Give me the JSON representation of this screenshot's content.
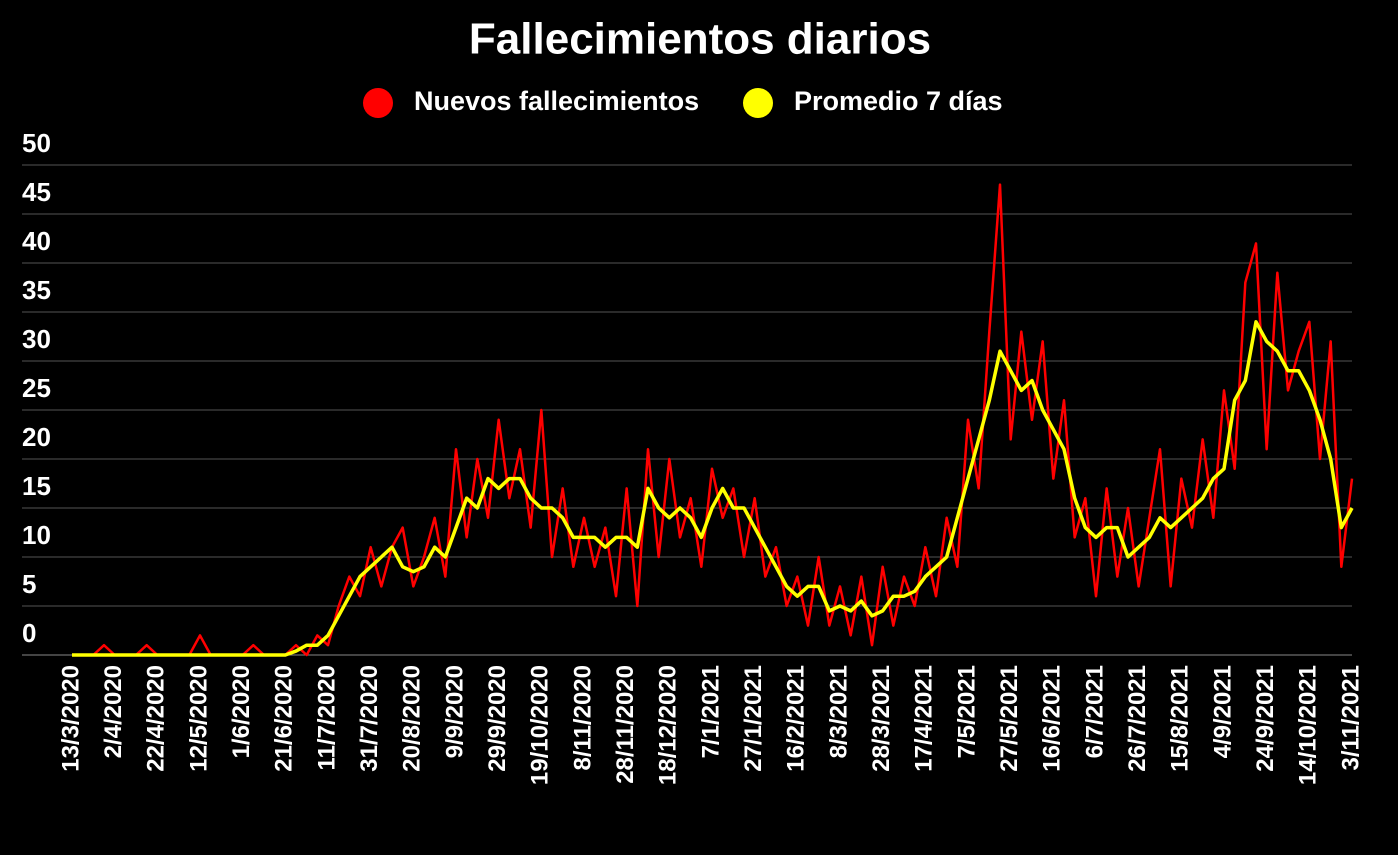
{
  "chart_data": {
    "type": "line",
    "title": "Fallecimientos diarios",
    "categories": [
      "13/3/2020",
      null,
      null,
      null,
      "2/4/2020",
      null,
      null,
      null,
      "22/4/2020",
      null,
      null,
      null,
      "12/5/2020",
      null,
      null,
      null,
      "1/6/2020",
      null,
      null,
      null,
      "21/6/2020",
      null,
      null,
      null,
      "11/7/2020",
      null,
      null,
      null,
      "31/7/2020",
      null,
      null,
      null,
      "20/8/2020",
      null,
      null,
      null,
      "9/9/2020",
      null,
      null,
      null,
      "29/9/2020",
      null,
      null,
      null,
      "19/10/2020",
      null,
      null,
      null,
      "8/11/2020",
      null,
      null,
      null,
      "28/11/2020",
      null,
      null,
      null,
      "18/12/2020",
      null,
      null,
      null,
      "7/1/2021",
      null,
      null,
      null,
      "27/1/2021",
      null,
      null,
      null,
      "16/2/2021",
      null,
      null,
      null,
      "8/3/2021",
      null,
      null,
      null,
      "28/3/2021",
      null,
      null,
      null,
      "17/4/2021",
      null,
      null,
      null,
      "7/5/2021",
      null,
      null,
      null,
      "27/5/2021",
      null,
      null,
      null,
      "16/6/2021",
      null,
      null,
      null,
      "6/7/2021",
      null,
      null,
      null,
      "26/7/2021",
      null,
      null,
      null,
      "15/8/2021",
      null,
      null,
      null,
      "4/9/2021",
      null,
      null,
      null,
      "24/9/2021",
      null,
      null,
      null,
      "14/10/2021",
      null,
      null,
      null,
      "3/11/2021"
    ],
    "series": [
      {
        "name": "Nuevos fallecimientos",
        "color": "#ff0000",
        "values": [
          0,
          0,
          0,
          1,
          0,
          0,
          0,
          1,
          0,
          0,
          0,
          0,
          2,
          0,
          0,
          0,
          0,
          1,
          0,
          0,
          0,
          1,
          0,
          2,
          1,
          5,
          8,
          6,
          11,
          7,
          11,
          13,
          7,
          10,
          14,
          8,
          21,
          12,
          20,
          14,
          24,
          16,
          21,
          13,
          25,
          10,
          17,
          9,
          14,
          9,
          13,
          6,
          17,
          5,
          21,
          10,
          20,
          12,
          16,
          9,
          19,
          14,
          17,
          10,
          16,
          8,
          11,
          5,
          8,
          3,
          10,
          3,
          7,
          2,
          8,
          1,
          9,
          3,
          8,
          5,
          11,
          6,
          14,
          9,
          24,
          17,
          33,
          48,
          22,
          33,
          24,
          32,
          18,
          26,
          12,
          16,
          6,
          17,
          8,
          15,
          7,
          14,
          21,
          7,
          18,
          13,
          22,
          14,
          27,
          19,
          38,
          42,
          21,
          39,
          27,
          31,
          34,
          20,
          32,
          9,
          18
        ]
      },
      {
        "name": "Promedio 7 días",
        "color": "#ffff00",
        "values": [
          0,
          0,
          0,
          0,
          0,
          0,
          0,
          0,
          0,
          0,
          0,
          0,
          0,
          0,
          0,
          0,
          0,
          0,
          0,
          0,
          0,
          0.4,
          1,
          1,
          2,
          4,
          6,
          8,
          9,
          10,
          11,
          9,
          8.5,
          9,
          11,
          10,
          13,
          16,
          15,
          18,
          17,
          18,
          18,
          16,
          15,
          15,
          14,
          12,
          12,
          12,
          11,
          12,
          12,
          11,
          17,
          15,
          14,
          15,
          14,
          12,
          15,
          17,
          15,
          15,
          13,
          11,
          9,
          7,
          6,
          7,
          7,
          4.5,
          5,
          4.5,
          5.5,
          4,
          4.5,
          6,
          6,
          6.5,
          8,
          9,
          10,
          14,
          18,
          22,
          26,
          31,
          29,
          27,
          28,
          25,
          23,
          21,
          16,
          13,
          12,
          13,
          13,
          10,
          11,
          12,
          14,
          13,
          14,
          15,
          16,
          18,
          19,
          26,
          28,
          34,
          32,
          31,
          29,
          29,
          27,
          24,
          20,
          13,
          15
        ]
      }
    ],
    "ylim": [
      0,
      50
    ],
    "yticks": [
      0,
      5,
      10,
      15,
      20,
      25,
      30,
      35,
      40,
      45,
      50
    ],
    "grid": true
  }
}
